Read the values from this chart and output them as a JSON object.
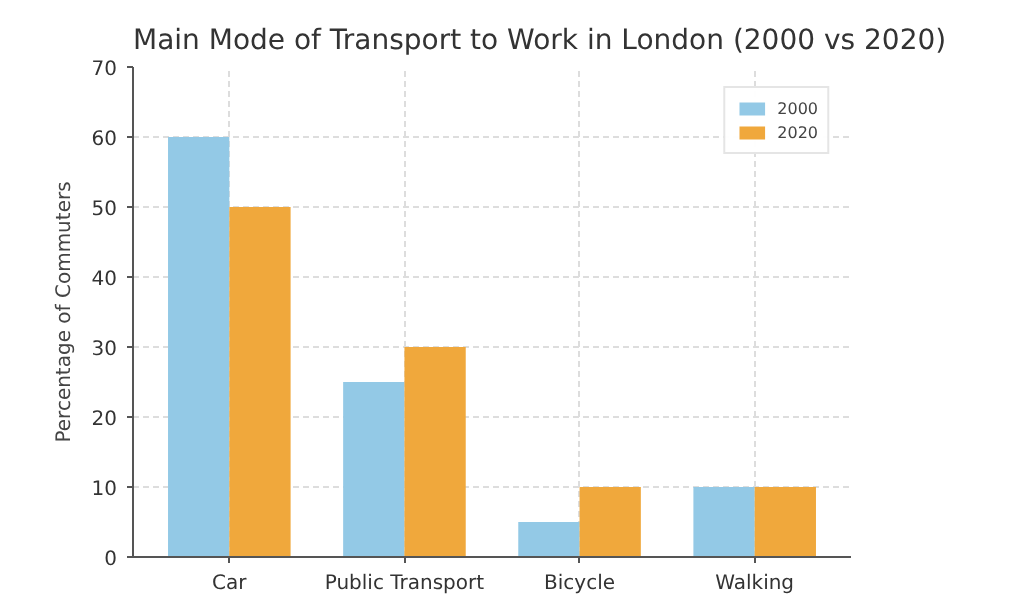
{
  "chart_data": {
    "type": "bar",
    "title": "Main Mode of Transport to Work in London (2000 vs 2020)",
    "ylabel": "Percentage of Commuters",
    "categories": [
      "Car",
      "Public Transport",
      "Bicycle",
      "Walking"
    ],
    "series": [
      {
        "name": "2000",
        "color": "#93c9e6",
        "values": [
          60,
          25,
          5,
          10
        ]
      },
      {
        "name": "2020",
        "color": "#f0a83c",
        "values": [
          50,
          30,
          10,
          10
        ]
      }
    ],
    "ylim": [
      0,
      70
    ],
    "yticks": [
      0,
      10,
      20,
      30,
      40,
      50,
      60,
      70
    ],
    "grid": true,
    "legend": "top right"
  }
}
